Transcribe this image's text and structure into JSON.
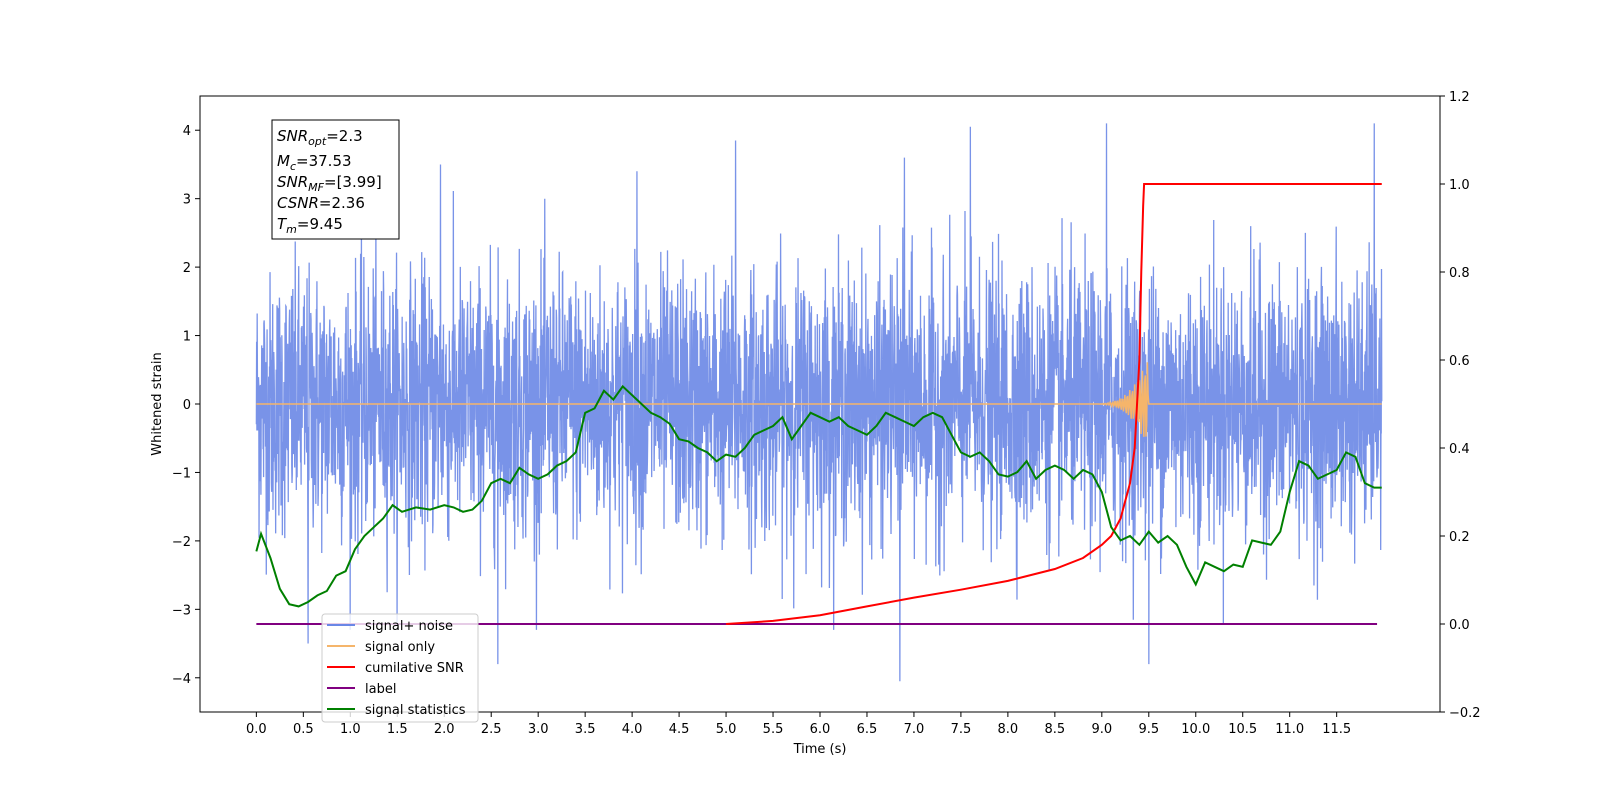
{
  "chart_data": {
    "type": "line",
    "xlabel": "Time (s)",
    "ylabel_left": "Whitened strain",
    "ylabel_right": "",
    "xlim": [
      -0.6,
      12.6
    ],
    "ylim_left": [
      -4.5,
      4.5
    ],
    "ylim_right": [
      -0.2,
      1.2
    ],
    "x_ticks": [
      0.0,
      0.5,
      1.0,
      1.5,
      2.0,
      2.5,
      3.0,
      3.5,
      4.0,
      4.5,
      5.0,
      5.5,
      6.0,
      6.5,
      7.0,
      7.5,
      8.0,
      8.5,
      9.0,
      9.5,
      10.0,
      10.5,
      11.0,
      11.5
    ],
    "x_tick_labels": [
      "0.0",
      "0.5",
      "1.0",
      "1.5",
      "2.0",
      "2.5",
      "3.0",
      "3.5",
      "4.0",
      "4.5",
      "5.0",
      "5.5",
      "6.0",
      "6.5",
      "7.0",
      "7.5",
      "8.0",
      "8.5",
      "9.0",
      "9.5",
      "10.0",
      "10.5",
      "11.0",
      "11.5"
    ],
    "y_left_ticks": [
      -4,
      -3,
      -2,
      -1,
      0,
      1,
      2,
      3,
      4
    ],
    "y_left_tick_labels": [
      "−4",
      "−3",
      "−2",
      "−1",
      "0",
      "1",
      "2",
      "3",
      "4"
    ],
    "y_right_ticks": [
      -0.2,
      0.0,
      0.2,
      0.4,
      0.6,
      0.8,
      1.0,
      1.2
    ],
    "y_right_tick_labels": [
      "−0.2",
      "0.0",
      "0.2",
      "0.4",
      "0.6",
      "0.8",
      "1.0",
      "1.2"
    ],
    "grid": false,
    "legend_position": "bottom-left",
    "legend": [
      {
        "label": "signal+ noise",
        "color": "#6a87e6"
      },
      {
        "label": "signal only",
        "color": "#f5b56b"
      },
      {
        "label": "cumilative SNR",
        "color": "#ff0000"
      },
      {
        "label": "label",
        "color": "#800080"
      },
      {
        "label": "signal statistics",
        "color": "#008000"
      }
    ],
    "annotation_box": [
      {
        "main": "SNR",
        "sub": "opt",
        "value": "=2.3"
      },
      {
        "main": "M",
        "sub": "c",
        "value": "=37.53"
      },
      {
        "main": "SNR",
        "sub": "MF",
        "value": "=[3.99]"
      },
      {
        "main": "CSNR",
        "sub": "",
        "value": "=2.36"
      },
      {
        "main": "T",
        "sub": "m",
        "value": "=9.45"
      }
    ],
    "series": [
      {
        "name": "signal+ noise",
        "axis": "left",
        "color": "#6a87e6",
        "description_range": [
          -4.05,
          4.1
        ],
        "x_range": [
          0.0,
          11.98
        ],
        "peaks": [
          {
            "x": 0.55,
            "y": -3.5
          },
          {
            "x": 1.96,
            "y": 3.5
          },
          {
            "x": 2.57,
            "y": -3.8
          },
          {
            "x": 4.05,
            "y": 3.4
          },
          {
            "x": 5.1,
            "y": 3.85
          },
          {
            "x": 6.9,
            "y": 3.6
          },
          {
            "x": 6.85,
            "y": -4.05
          },
          {
            "x": 7.6,
            "y": 4.05
          },
          {
            "x": 9.05,
            "y": 4.1
          },
          {
            "x": 9.5,
            "y": -3.8
          },
          {
            "x": 11.9,
            "y": 4.1
          }
        ]
      },
      {
        "name": "signal only",
        "axis": "left",
        "color": "#f5b56b",
        "points": [
          [
            0.0,
            0.0
          ],
          [
            9.0,
            0.0
          ],
          [
            9.1,
            0.06
          ],
          [
            9.2,
            0.1
          ],
          [
            9.3,
            0.2
          ],
          [
            9.38,
            0.35
          ],
          [
            9.45,
            0.6
          ],
          [
            9.47,
            -0.55
          ],
          [
            9.5,
            0.0
          ],
          [
            11.98,
            0.0
          ]
        ]
      },
      {
        "name": "cumilative SNR",
        "axis": "right",
        "color": "#ff0000",
        "points": [
          [
            5.0,
            0.0
          ],
          [
            5.5,
            0.007
          ],
          [
            6.0,
            0.02
          ],
          [
            6.5,
            0.04
          ],
          [
            7.0,
            0.06
          ],
          [
            7.5,
            0.078
          ],
          [
            8.0,
            0.098
          ],
          [
            8.5,
            0.125
          ],
          [
            8.8,
            0.15
          ],
          [
            9.0,
            0.18
          ],
          [
            9.1,
            0.2
          ],
          [
            9.2,
            0.24
          ],
          [
            9.3,
            0.32
          ],
          [
            9.35,
            0.4
          ],
          [
            9.4,
            0.6
          ],
          [
            9.42,
            0.8
          ],
          [
            9.44,
            0.95
          ],
          [
            9.45,
            1.0
          ],
          [
            11.98,
            1.0
          ]
        ]
      },
      {
        "name": "label",
        "axis": "right",
        "color": "#800080",
        "points": [
          [
            0.0,
            0.0
          ],
          [
            11.93,
            0.0
          ]
        ]
      },
      {
        "name": "signal statistics",
        "axis": "right",
        "color": "#008000",
        "points": [
          [
            0.0,
            0.165
          ],
          [
            0.05,
            0.205
          ],
          [
            0.15,
            0.15
          ],
          [
            0.25,
            0.08
          ],
          [
            0.35,
            0.045
          ],
          [
            0.45,
            0.04
          ],
          [
            0.55,
            0.05
          ],
          [
            0.65,
            0.065
          ],
          [
            0.75,
            0.075
          ],
          [
            0.85,
            0.11
          ],
          [
            0.95,
            0.12
          ],
          [
            1.05,
            0.17
          ],
          [
            1.15,
            0.2
          ],
          [
            1.25,
            0.22
          ],
          [
            1.35,
            0.24
          ],
          [
            1.45,
            0.27
          ],
          [
            1.55,
            0.255
          ],
          [
            1.7,
            0.265
          ],
          [
            1.85,
            0.26
          ],
          [
            2.0,
            0.27
          ],
          [
            2.1,
            0.265
          ],
          [
            2.2,
            0.255
          ],
          [
            2.3,
            0.26
          ],
          [
            2.4,
            0.28
          ],
          [
            2.5,
            0.32
          ],
          [
            2.6,
            0.33
          ],
          [
            2.7,
            0.32
          ],
          [
            2.8,
            0.355
          ],
          [
            2.9,
            0.34
          ],
          [
            3.0,
            0.33
          ],
          [
            3.1,
            0.34
          ],
          [
            3.2,
            0.36
          ],
          [
            3.3,
            0.37
          ],
          [
            3.4,
            0.39
          ],
          [
            3.5,
            0.48
          ],
          [
            3.6,
            0.49
          ],
          [
            3.7,
            0.53
          ],
          [
            3.8,
            0.51
          ],
          [
            3.9,
            0.54
          ],
          [
            4.0,
            0.52
          ],
          [
            4.1,
            0.5
          ],
          [
            4.2,
            0.48
          ],
          [
            4.3,
            0.47
          ],
          [
            4.4,
            0.455
          ],
          [
            4.5,
            0.42
          ],
          [
            4.6,
            0.415
          ],
          [
            4.7,
            0.4
          ],
          [
            4.8,
            0.39
          ],
          [
            4.9,
            0.37
          ],
          [
            5.0,
            0.385
          ],
          [
            5.1,
            0.38
          ],
          [
            5.2,
            0.4
          ],
          [
            5.3,
            0.43
          ],
          [
            5.4,
            0.44
          ],
          [
            5.5,
            0.45
          ],
          [
            5.6,
            0.47
          ],
          [
            5.7,
            0.42
          ],
          [
            5.8,
            0.45
          ],
          [
            5.9,
            0.48
          ],
          [
            6.0,
            0.47
          ],
          [
            6.1,
            0.46
          ],
          [
            6.2,
            0.47
          ],
          [
            6.3,
            0.45
          ],
          [
            6.4,
            0.44
          ],
          [
            6.5,
            0.43
          ],
          [
            6.6,
            0.45
          ],
          [
            6.7,
            0.48
          ],
          [
            6.8,
            0.47
          ],
          [
            6.9,
            0.46
          ],
          [
            7.0,
            0.45
          ],
          [
            7.1,
            0.47
          ],
          [
            7.2,
            0.48
          ],
          [
            7.3,
            0.47
          ],
          [
            7.4,
            0.43
          ],
          [
            7.5,
            0.39
          ],
          [
            7.6,
            0.38
          ],
          [
            7.7,
            0.39
          ],
          [
            7.8,
            0.37
          ],
          [
            7.9,
            0.34
          ],
          [
            8.0,
            0.335
          ],
          [
            8.1,
            0.345
          ],
          [
            8.2,
            0.37
          ],
          [
            8.3,
            0.33
          ],
          [
            8.4,
            0.35
          ],
          [
            8.5,
            0.36
          ],
          [
            8.6,
            0.35
          ],
          [
            8.7,
            0.33
          ],
          [
            8.8,
            0.35
          ],
          [
            8.9,
            0.34
          ],
          [
            9.0,
            0.3
          ],
          [
            9.1,
            0.22
          ],
          [
            9.2,
            0.19
          ],
          [
            9.3,
            0.2
          ],
          [
            9.4,
            0.18
          ],
          [
            9.5,
            0.21
          ],
          [
            9.6,
            0.185
          ],
          [
            9.7,
            0.2
          ],
          [
            9.8,
            0.18
          ],
          [
            9.9,
            0.13
          ],
          [
            10.0,
            0.09
          ],
          [
            10.1,
            0.14
          ],
          [
            10.2,
            0.13
          ],
          [
            10.3,
            0.12
          ],
          [
            10.4,
            0.135
          ],
          [
            10.5,
            0.13
          ],
          [
            10.6,
            0.19
          ],
          [
            10.7,
            0.185
          ],
          [
            10.8,
            0.18
          ],
          [
            10.9,
            0.21
          ],
          [
            11.0,
            0.3
          ],
          [
            11.1,
            0.37
          ],
          [
            11.2,
            0.36
          ],
          [
            11.3,
            0.33
          ],
          [
            11.4,
            0.34
          ],
          [
            11.5,
            0.35
          ],
          [
            11.6,
            0.39
          ],
          [
            11.7,
            0.38
          ],
          [
            11.8,
            0.32
          ],
          [
            11.9,
            0.31
          ],
          [
            11.98,
            0.31
          ]
        ]
      }
    ]
  }
}
